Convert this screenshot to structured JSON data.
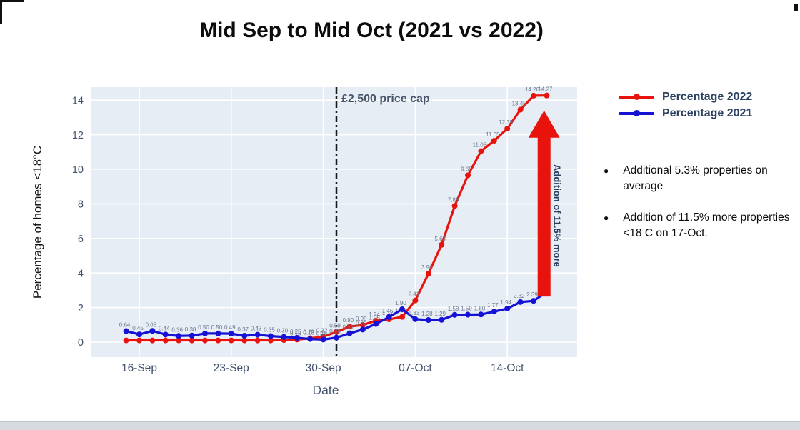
{
  "page": {
    "title": "Mid Sep to Mid Oct (2021 vs 2022)"
  },
  "colors": {
    "red": "#e8130c",
    "blue": "#1512d6",
    "plot_bg": "#e7edf5",
    "grid": "#ffffff",
    "tick_label": "#42526d",
    "vline": "#15181d",
    "vline_label": "#47566b",
    "data_label": "#6a788e",
    "arrow": "#e8130c",
    "arrow_label": "#2a3f5f",
    "legend_text": "#2a3f5f"
  },
  "chart_data": {
    "type": "line",
    "title": "Mid Sep to Mid Oct (2021 vs 2022)",
    "xlabel": "Date",
    "ylabel": "Percentage of homes <18°C",
    "ylim": [
      0,
      14.75
    ],
    "yticks": [
      0,
      2,
      4,
      6,
      8,
      10,
      12,
      14
    ],
    "grid": true,
    "legend_position": "outside-top-right",
    "x": [
      "15-Sep",
      "16-Sep",
      "17-Sep",
      "18-Sep",
      "19-Sep",
      "20-Sep",
      "21-Sep",
      "22-Sep",
      "23-Sep",
      "24-Sep",
      "25-Sep",
      "26-Sep",
      "27-Sep",
      "28-Sep",
      "29-Sep",
      "30-Sep",
      "01-Oct",
      "02-Oct",
      "03-Oct",
      "04-Oct",
      "05-Oct",
      "06-Oct",
      "07-Oct",
      "08-Oct",
      "09-Oct",
      "10-Oct",
      "11-Oct",
      "12-Oct",
      "13-Oct",
      "14-Oct",
      "15-Oct",
      "16-Oct",
      "17-Oct"
    ],
    "xtick_labels": [
      "16-Sep",
      "23-Sep",
      "30-Sep",
      "07-Oct",
      "14-Oct"
    ],
    "xtick_indices": [
      1,
      8,
      15,
      22,
      29
    ],
    "series": [
      {
        "name": "Percentage 2022",
        "color": "#e8130c",
        "label_from": 13,
        "label_until": 33,
        "values": [
          0.1,
          0.1,
          0.1,
          0.1,
          0.1,
          0.1,
          0.1,
          0.1,
          0.1,
          0.1,
          0.1,
          0.1,
          0.12,
          0.15,
          0.22,
          0.32,
          0.59,
          0.9,
          0.99,
          1.24,
          1.32,
          1.46,
          2.41,
          3.96,
          5.63,
          7.88,
          9.65,
          11.05,
          11.65,
          12.35,
          13.45,
          14.26,
          14.27
        ]
      },
      {
        "name": "Percentage 2021",
        "color": "#1512d6",
        "label_from": 0,
        "label_until": 32,
        "values": [
          0.64,
          0.45,
          0.65,
          0.44,
          0.36,
          0.38,
          0.5,
          0.5,
          0.49,
          0.37,
          0.43,
          0.35,
          0.3,
          0.25,
          0.18,
          0.15,
          0.26,
          0.51,
          0.73,
          1.05,
          1.45,
          1.9,
          1.33,
          1.28,
          1.29,
          1.58,
          1.59,
          1.6,
          1.77,
          1.94,
          2.32,
          2.39,
          2.9
        ]
      }
    ],
    "annotations": {
      "vline": {
        "x_index": 16,
        "label": "£2,500 price cap",
        "style": "dash-dot"
      },
      "arrow": {
        "label": "Addition of 11.5% more",
        "x_position": 31.8,
        "from_value": 2.64,
        "to_value": 13.4
      }
    }
  },
  "legend": {
    "items": [
      {
        "label": "Percentage 2022",
        "color": "#e8130c"
      },
      {
        "label": "Percentage 2021",
        "color": "#1512d6"
      }
    ]
  },
  "notes": {
    "bullets": [
      "Additional 5.3% properties on average",
      "Addition of 11.5% more properties <18 C on 17-Oct."
    ]
  }
}
